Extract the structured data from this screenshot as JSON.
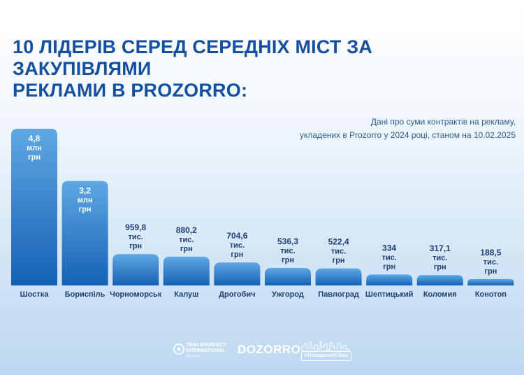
{
  "header": {
    "title_line1": "10 ЛІДЕРІВ СЕРЕД СЕРЕДНІХ МІСТ ЗА ЗАКУПІВЛЯМИ",
    "title_line2": "РЕКЛАМИ В PROZORRO:",
    "subtitle_line1": "Дані про суми контрактів на рекламу,",
    "subtitle_line2": "укладених в Prozorro у 2024 році, станом на 10.02.2025"
  },
  "chart_data": {
    "type": "bar",
    "categories": [
      "Шостка",
      "Бориспіль",
      "Чорноморськ",
      "Калуш",
      "Дрогобич",
      "Ужгород",
      "Павлоград",
      "Шептицький",
      "Коломия",
      "Конотоп"
    ],
    "values": [
      4.8,
      3.2,
      0.9598,
      0.8802,
      0.7046,
      0.5363,
      0.5224,
      0.334,
      0.3171,
      0.1885
    ],
    "value_unit": "млн грн",
    "data_labels": [
      [
        "4,8",
        "млн",
        "грн"
      ],
      [
        "3,2",
        "млн",
        "грн"
      ],
      [
        "959,8",
        "тис.",
        "грн"
      ],
      [
        "880,2",
        "тис.",
        "грн"
      ],
      [
        "704,6",
        "тис.",
        "грн"
      ],
      [
        "536,3",
        "тис.",
        "грн"
      ],
      [
        "522,4",
        "тис.",
        "грн"
      ],
      [
        "334",
        "тис.",
        "грн"
      ],
      [
        "317,1",
        "тис.",
        "грн"
      ],
      [
        "188,5",
        "тис.",
        "грн"
      ]
    ],
    "label_placement": [
      "inside",
      "inside",
      "above",
      "above",
      "above",
      "above",
      "above",
      "above",
      "above",
      "above"
    ],
    "title": "10 ЛІДЕРІВ СЕРЕД СЕРЕДНІХ МІСТ ЗА ЗАКУПІВЛЯМИ РЕКЛАМИ В PROZORRO:",
    "xlabel": "",
    "ylabel": "",
    "ylim": [
      0,
      4.8
    ],
    "grid": false,
    "legend": "none"
  },
  "colors": {
    "bar_top": "#5ea8e4",
    "bar_bottom": "#1660b4",
    "label_dark": "#1d3f73",
    "label_light": "#ffffff",
    "title": "#1550a0"
  },
  "footer": {
    "logo_ti_line1": "TRANSPARENCY",
    "logo_ti_line2": "INTERNATIONAL",
    "logo_ti_line3": "UKRAINE",
    "logo_dozorro": "DOZORRO",
    "logo_transparent_cities": "#TransparentCities"
  }
}
